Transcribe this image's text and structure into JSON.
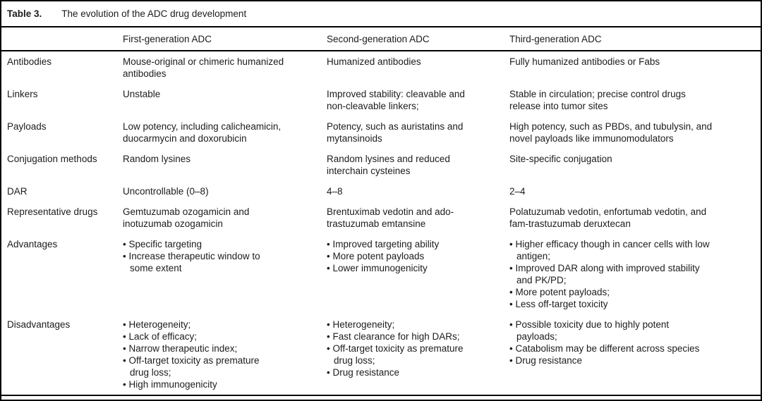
{
  "colors": {
    "border": "#000000",
    "text": "#1c1c1c",
    "background": "#ffffff"
  },
  "table": {
    "title_label": "Table 3.",
    "title_text": "The evolution of the ADC drug development",
    "list_marker": "•",
    "columns": [
      "",
      "First-generation ADC",
      "Second-generation ADC",
      "Third-generation ADC"
    ],
    "rows": [
      {
        "label": "Antibodies",
        "cells": [
          {
            "text": "Mouse-original or chimeric humanized\nantibodies"
          },
          {
            "text": "Humanized antibodies"
          },
          {
            "text": "Fully humanized antibodies or Fabs"
          }
        ]
      },
      {
        "label": "Linkers",
        "cells": [
          {
            "text": "Unstable"
          },
          {
            "text": "Improved stability: cleavable and\nnon-cleavable linkers;"
          },
          {
            "text": "Stable in circulation; precise control drugs\nrelease into tumor sites"
          }
        ]
      },
      {
        "label": "Payloads",
        "cells": [
          {
            "text": "Low potency, including calicheamicin,\nduocarmycin and doxorubicin"
          },
          {
            "text": "Potency, such as auristatins and\nmytansinoids"
          },
          {
            "text": "High potency, such as PBDs, and tubulysin, and\nnovel payloads like immunomodulators"
          }
        ]
      },
      {
        "label": "Conjugation methods",
        "cells": [
          {
            "text": "Random lysines"
          },
          {
            "text": "Random lysines and reduced\ninterchain cysteines"
          },
          {
            "text": "Site-specific conjugation"
          }
        ]
      },
      {
        "label": "DAR",
        "cells": [
          {
            "text": "Uncontrollable (0–8)"
          },
          {
            "text": "4–8"
          },
          {
            "text": "2–4"
          }
        ]
      },
      {
        "label": "Representative drugs",
        "cells": [
          {
            "text": "Gemtuzumab ozogamicin and\ninotuzumab ozogamicin"
          },
          {
            "text": "Brentuximab vedotin and ado-\ntrastuzumab emtansine"
          },
          {
            "text": "Polatuzumab vedotin, enfortumab vedotin, and\nfam-trastuzumab deruxtecan"
          }
        ]
      },
      {
        "label": "Advantages",
        "cells": [
          {
            "bullets": [
              "Specific targeting",
              "Increase therapeutic window to\nsome extent"
            ]
          },
          {
            "bullets": [
              "Improved targeting ability",
              "More potent payloads",
              "Lower immunogenicity"
            ]
          },
          {
            "bullets": [
              "Higher efficacy though in cancer cells with low\nantigen;",
              "Improved DAR along with improved stability\nand PK/PD;",
              "More potent payloads;",
              "Less off-target toxicity"
            ]
          }
        ]
      },
      {
        "label": "Disadvantages",
        "cells": [
          {
            "bullets": [
              "Heterogeneity;",
              "Lack of efficacy;",
              "Narrow therapeutic index;",
              "Off-target toxicity as premature\ndrug loss;",
              "High immunogenicity"
            ]
          },
          {
            "bullets": [
              "Heterogeneity;",
              "Fast clearance for high DARs;",
              "Off-target toxicity as premature\ndrug loss;",
              "Drug resistance"
            ]
          },
          {
            "bullets": [
              "Possible toxicity due to highly potent\npayloads;",
              "Catabolism may be different across species",
              "Drug resistance"
            ]
          }
        ]
      }
    ]
  }
}
